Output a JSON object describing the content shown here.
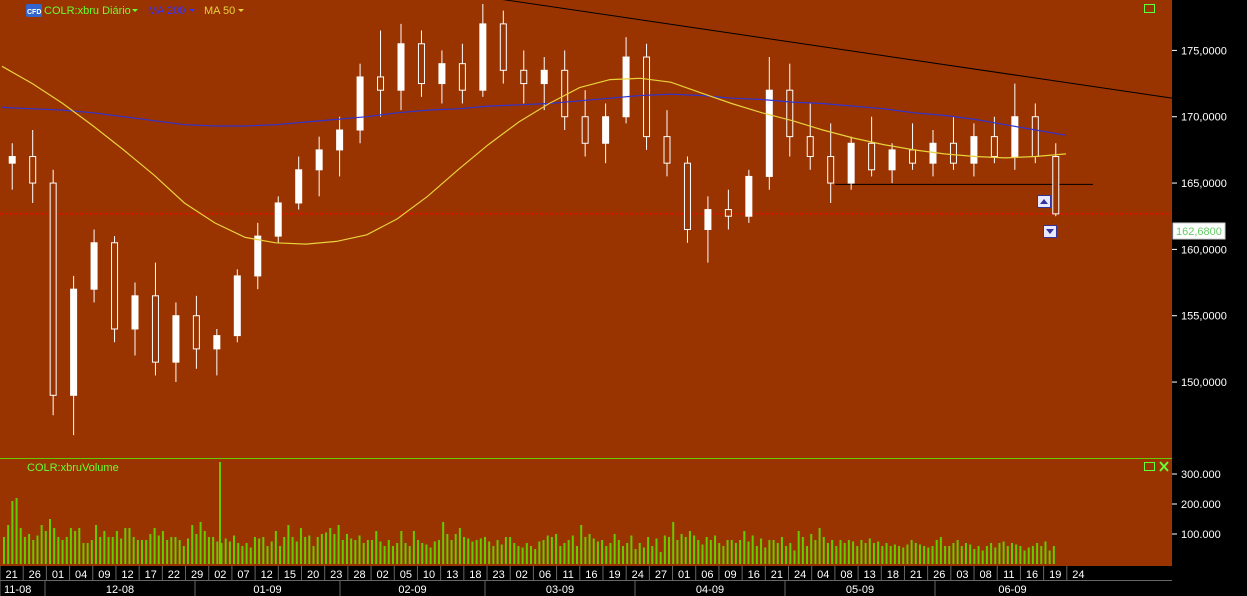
{
  "header": {
    "logo_text": "CFD",
    "symbol_label": "COLR:xbru Diário",
    "ma200_label": "MA 200",
    "ma50_label": "MA 50"
  },
  "volume_header": {
    "label": "COLR:xbruVolume"
  },
  "colors": {
    "background": "#993300",
    "up_candle": "#ffffff",
    "down_candle": "#ffffff",
    "wick": "#ffffff",
    "ma200": "#3333cc",
    "ma50": "#e8d23c",
    "volume": "#66cc00",
    "accent_green": "#66ff33",
    "price_line": "#ff0000"
  },
  "chart_data": {
    "type": "candlestick",
    "price_axis": {
      "ticks": [
        "175,0000",
        "170,0000",
        "165,0000",
        "160,0000",
        "155,0000",
        "150,0000"
      ],
      "tick_values": [
        175,
        170,
        165,
        160,
        155,
        150
      ],
      "range": [
        144.5,
        178.8
      ]
    },
    "current_price": {
      "label": "162,6800",
      "value": 162.68
    },
    "volume_axis": {
      "ticks": [
        "300.000",
        "200.000",
        "100.000"
      ],
      "tick_values": [
        300000,
        200000,
        100000
      ],
      "range": [
        0,
        340000
      ]
    },
    "x_axis": {
      "day_ticks": [
        "21",
        "26",
        "01",
        "04",
        "09",
        "12",
        "17",
        "22",
        "29",
        "02",
        "07",
        "12",
        "15",
        "20",
        "23",
        "28",
        "02",
        "05",
        "10",
        "13",
        "18",
        "23",
        "02",
        "06",
        "11",
        "16",
        "19",
        "24",
        "27",
        "01",
        "06",
        "09",
        "16",
        "21",
        "24",
        "04",
        "08",
        "13",
        "18",
        "21",
        "26",
        "03",
        "08",
        "11",
        "16",
        "19",
        "24"
      ],
      "month_ticks": [
        "11-08",
        "12-08",
        "01-09",
        "02-09",
        "03-09",
        "04-09",
        "05-09",
        "06-09"
      ]
    },
    "trendline": {
      "start": 179.2,
      "end": 171.4
    },
    "support_line": {
      "value": 164.9
    },
    "ma200": [
      170.7,
      170.6,
      170.5,
      170.3,
      170.0,
      169.7,
      169.4,
      169.3,
      169.3,
      169.4,
      169.6,
      169.8,
      170.0,
      170.3,
      170.5,
      170.6,
      170.8,
      170.9,
      171.0,
      171.2,
      171.4,
      171.6,
      171.7,
      171.6,
      171.4,
      171.3,
      171.1,
      171.0,
      170.8,
      170.6,
      170.3,
      170.1,
      169.8,
      169.4,
      169.0,
      168.6
    ],
    "ma50": [
      173.8,
      172.5,
      171.0,
      169.3,
      167.5,
      165.6,
      163.5,
      162.0,
      160.9,
      160.5,
      160.4,
      160.6,
      161.1,
      162.3,
      164.0,
      166.0,
      167.9,
      169.6,
      171.0,
      172.2,
      172.8,
      172.9,
      172.6,
      171.8,
      171.0,
      170.3,
      169.7,
      169.0,
      168.4,
      167.9,
      167.5,
      167.2,
      167.0,
      166.9,
      167.0,
      167.2
    ],
    "candles": [
      [
        166.5,
        168.0,
        164.5,
        167.0
      ],
      [
        167.0,
        169.0,
        163.5,
        165.0
      ],
      [
        165.0,
        166.0,
        147.5,
        149.0
      ],
      [
        149.0,
        158.0,
        146.0,
        157.0
      ],
      [
        157.0,
        161.5,
        156.0,
        160.5
      ],
      [
        160.5,
        161.0,
        153.0,
        154.0
      ],
      [
        154.0,
        157.5,
        152.0,
        156.5
      ],
      [
        156.5,
        159.0,
        150.5,
        151.5
      ],
      [
        151.5,
        156.0,
        150.0,
        155.0
      ],
      [
        155.0,
        156.5,
        151.0,
        152.5
      ],
      [
        152.5,
        154.0,
        150.5,
        153.5
      ],
      [
        153.5,
        158.5,
        153.0,
        158.0
      ],
      [
        158.0,
        162.0,
        157.0,
        161.0
      ],
      [
        161.0,
        164.0,
        160.5,
        163.5
      ],
      [
        163.5,
        167.0,
        163.0,
        166.0
      ],
      [
        166.0,
        168.5,
        164.0,
        167.5
      ],
      [
        167.5,
        170.0,
        165.5,
        169.0
      ],
      [
        169.0,
        174.0,
        168.0,
        173.0
      ],
      [
        173.0,
        176.5,
        170.0,
        172.0
      ],
      [
        172.0,
        177.0,
        170.5,
        175.5
      ],
      [
        175.5,
        176.5,
        171.5,
        172.5
      ],
      [
        172.5,
        175.0,
        171.0,
        174.0
      ],
      [
        174.0,
        175.5,
        171.0,
        172.0
      ],
      [
        172.0,
        178.5,
        171.5,
        177.0
      ],
      [
        177.0,
        178.0,
        172.5,
        173.5
      ],
      [
        173.5,
        175.0,
        171.0,
        172.5
      ],
      [
        172.5,
        174.5,
        170.5,
        173.5
      ],
      [
        173.5,
        175.0,
        169.0,
        170.0
      ],
      [
        170.0,
        172.0,
        167.0,
        168.0
      ],
      [
        168.0,
        171.0,
        166.5,
        170.0
      ],
      [
        170.0,
        176.0,
        169.5,
        174.5
      ],
      [
        174.5,
        175.5,
        167.5,
        168.5
      ],
      [
        168.5,
        170.5,
        165.5,
        166.5
      ],
      [
        166.5,
        167.0,
        160.5,
        161.5
      ],
      [
        161.5,
        164.0,
        159.0,
        163.0
      ],
      [
        163.0,
        164.5,
        161.5,
        162.5
      ],
      [
        162.5,
        166.0,
        162.0,
        165.5
      ],
      [
        165.5,
        174.5,
        164.5,
        172.0
      ],
      [
        172.0,
        174.0,
        167.0,
        168.5
      ],
      [
        168.5,
        171.0,
        166.0,
        167.0
      ],
      [
        167.0,
        169.5,
        163.5,
        165.0
      ],
      [
        165.0,
        168.5,
        164.5,
        168.0
      ],
      [
        168.0,
        170.0,
        165.5,
        166.0
      ],
      [
        166.0,
        168.0,
        165.0,
        167.5
      ],
      [
        167.5,
        169.5,
        166.0,
        166.5
      ],
      [
        166.5,
        169.0,
        165.5,
        168.0
      ],
      [
        168.0,
        170.0,
        166.0,
        166.5
      ],
      [
        166.5,
        169.5,
        165.5,
        168.5
      ],
      [
        168.5,
        170.0,
        166.5,
        167.0
      ],
      [
        167.0,
        172.5,
        166.0,
        170.0
      ],
      [
        170.0,
        171.0,
        166.5,
        167.0
      ],
      [
        167.0,
        168.0,
        162.5,
        162.68
      ]
    ],
    "volumes": [
      90,
      130,
      210,
      220,
      120,
      90,
      100,
      80,
      95,
      130,
      110,
      150,
      120,
      90,
      80,
      90,
      120,
      110,
      120,
      70,
      70,
      80,
      130,
      90,
      110,
      90,
      90,
      110,
      85,
      120,
      120,
      90,
      80,
      80,
      80,
      100,
      120,
      95,
      110,
      80,
      90,
      90,
      80,
      60,
      85,
      130,
      100,
      140,
      110,
      90,
      90,
      75,
      70,
      85,
      75,
      95,
      70,
      60,
      70,
      55,
      90,
      85,
      90,
      60,
      75,
      110,
      60,
      90,
      130,
      90,
      75,
      120,
      90,
      95,
      60,
      90,
      100,
      105,
      120,
      100,
      130,
      80,
      100,
      85,
      80,
      95,
      70,
      80,
      80,
      110,
      75,
      60,
      80,
      60,
      70,
      110,
      70,
      60,
      110,
      80,
      70,
      65,
      55,
      75,
      80,
      140,
      100,
      80,
      100,
      120,
      90,
      85,
      75,
      80,
      85,
      90,
      75,
      60,
      80,
      65,
      90,
      90,
      70,
      60,
      55,
      70,
      60,
      50,
      75,
      80,
      95,
      90,
      100,
      60,
      70,
      80,
      95,
      60,
      130,
      90,
      100,
      85,
      75,
      80,
      60,
      70,
      100,
      80,
      60,
      70,
      95,
      50,
      70,
      55,
      90,
      60,
      85,
      40,
      95,
      90,
      140,
      80,
      100,
      90,
      110,
      95,
      80,
      65,
      90,
      80,
      95,
      70,
      60,
      80,
      80,
      70,
      80,
      110,
      75,
      95,
      60,
      85,
      55,
      80,
      80,
      70,
      90,
      60,
      70,
      45,
      110,
      90,
      60,
      100,
      80,
      120,
      90,
      70,
      80,
      60,
      80,
      70,
      80,
      75,
      60,
      80,
      70,
      85,
      70,
      75,
      60,
      70,
      60,
      65,
      60,
      55,
      65,
      80,
      70,
      65,
      60,
      55,
      60,
      80,
      90,
      60,
      60,
      70,
      80,
      60,
      70,
      65,
      50,
      60,
      45,
      60,
      70,
      55,
      70,
      75,
      60,
      70,
      65,
      60,
      45,
      55,
      60,
      70,
      60,
      75,
      45,
      60
    ],
    "volume_spike": {
      "value": 340000
    }
  }
}
